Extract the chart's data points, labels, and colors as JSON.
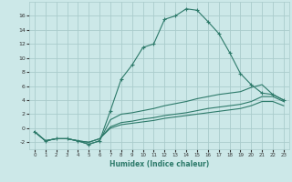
{
  "xlabel": "Humidex (Indice chaleur)",
  "background_color": "#cce8e8",
  "grid_color": "#aacccc",
  "line_color": "#2d7a6a",
  "xlim": [
    -0.5,
    23.5
  ],
  "ylim": [
    -3.0,
    18.0
  ],
  "xticks": [
    0,
    1,
    2,
    3,
    4,
    5,
    6,
    7,
    8,
    9,
    10,
    11,
    12,
    13,
    14,
    15,
    16,
    17,
    18,
    19,
    20,
    21,
    22,
    23
  ],
  "yticks": [
    -2,
    0,
    2,
    4,
    6,
    8,
    10,
    12,
    14,
    16
  ],
  "series1": [
    [
      0,
      -0.5
    ],
    [
      1,
      -1.8
    ],
    [
      2,
      -1.5
    ],
    [
      3,
      -1.5
    ],
    [
      4,
      -1.8
    ],
    [
      5,
      -2.3
    ],
    [
      6,
      -1.8
    ],
    [
      7,
      2.5
    ],
    [
      8,
      7.0
    ],
    [
      9,
      9.0
    ],
    [
      10,
      11.5
    ],
    [
      11,
      12.0
    ],
    [
      12,
      15.5
    ],
    [
      13,
      16.0
    ],
    [
      14,
      17.0
    ],
    [
      15,
      16.8
    ],
    [
      16,
      15.2
    ],
    [
      17,
      13.5
    ],
    [
      18,
      10.8
    ],
    [
      19,
      7.8
    ],
    [
      20,
      6.2
    ],
    [
      21,
      5.0
    ],
    [
      22,
      4.8
    ],
    [
      23,
      4.0
    ]
  ],
  "series2": [
    [
      0,
      -0.5
    ],
    [
      1,
      -1.8
    ],
    [
      2,
      -1.5
    ],
    [
      3,
      -1.5
    ],
    [
      4,
      -1.8
    ],
    [
      5,
      -2.3
    ],
    [
      6,
      -1.8
    ],
    [
      7,
      1.2
    ],
    [
      8,
      2.0
    ],
    [
      9,
      2.2
    ],
    [
      10,
      2.5
    ],
    [
      11,
      2.8
    ],
    [
      12,
      3.2
    ],
    [
      13,
      3.5
    ],
    [
      14,
      3.8
    ],
    [
      15,
      4.2
    ],
    [
      16,
      4.5
    ],
    [
      17,
      4.8
    ],
    [
      18,
      5.0
    ],
    [
      19,
      5.2
    ],
    [
      20,
      5.8
    ],
    [
      21,
      6.2
    ],
    [
      22,
      4.8
    ],
    [
      23,
      4.0
    ]
  ],
  "series3": [
    [
      0,
      -0.5
    ],
    [
      1,
      -1.8
    ],
    [
      2,
      -1.5
    ],
    [
      3,
      -1.5
    ],
    [
      4,
      -1.8
    ],
    [
      5,
      -2.0
    ],
    [
      6,
      -1.5
    ],
    [
      7,
      0.2
    ],
    [
      8,
      0.8
    ],
    [
      9,
      1.0
    ],
    [
      10,
      1.3
    ],
    [
      11,
      1.5
    ],
    [
      12,
      1.8
    ],
    [
      13,
      2.0
    ],
    [
      14,
      2.2
    ],
    [
      15,
      2.5
    ],
    [
      16,
      2.8
    ],
    [
      17,
      3.0
    ],
    [
      18,
      3.2
    ],
    [
      19,
      3.4
    ],
    [
      20,
      3.8
    ],
    [
      21,
      4.5
    ],
    [
      22,
      4.5
    ],
    [
      23,
      3.8
    ]
  ],
  "series4": [
    [
      0,
      -0.5
    ],
    [
      1,
      -1.8
    ],
    [
      2,
      -1.5
    ],
    [
      3,
      -1.5
    ],
    [
      4,
      -1.8
    ],
    [
      5,
      -2.0
    ],
    [
      6,
      -1.5
    ],
    [
      7,
      0.0
    ],
    [
      8,
      0.5
    ],
    [
      9,
      0.7
    ],
    [
      10,
      0.9
    ],
    [
      11,
      1.1
    ],
    [
      12,
      1.4
    ],
    [
      13,
      1.6
    ],
    [
      14,
      1.8
    ],
    [
      15,
      2.0
    ],
    [
      16,
      2.2
    ],
    [
      17,
      2.4
    ],
    [
      18,
      2.6
    ],
    [
      19,
      2.8
    ],
    [
      20,
      3.2
    ],
    [
      21,
      3.8
    ],
    [
      22,
      3.8
    ],
    [
      23,
      3.2
    ]
  ]
}
